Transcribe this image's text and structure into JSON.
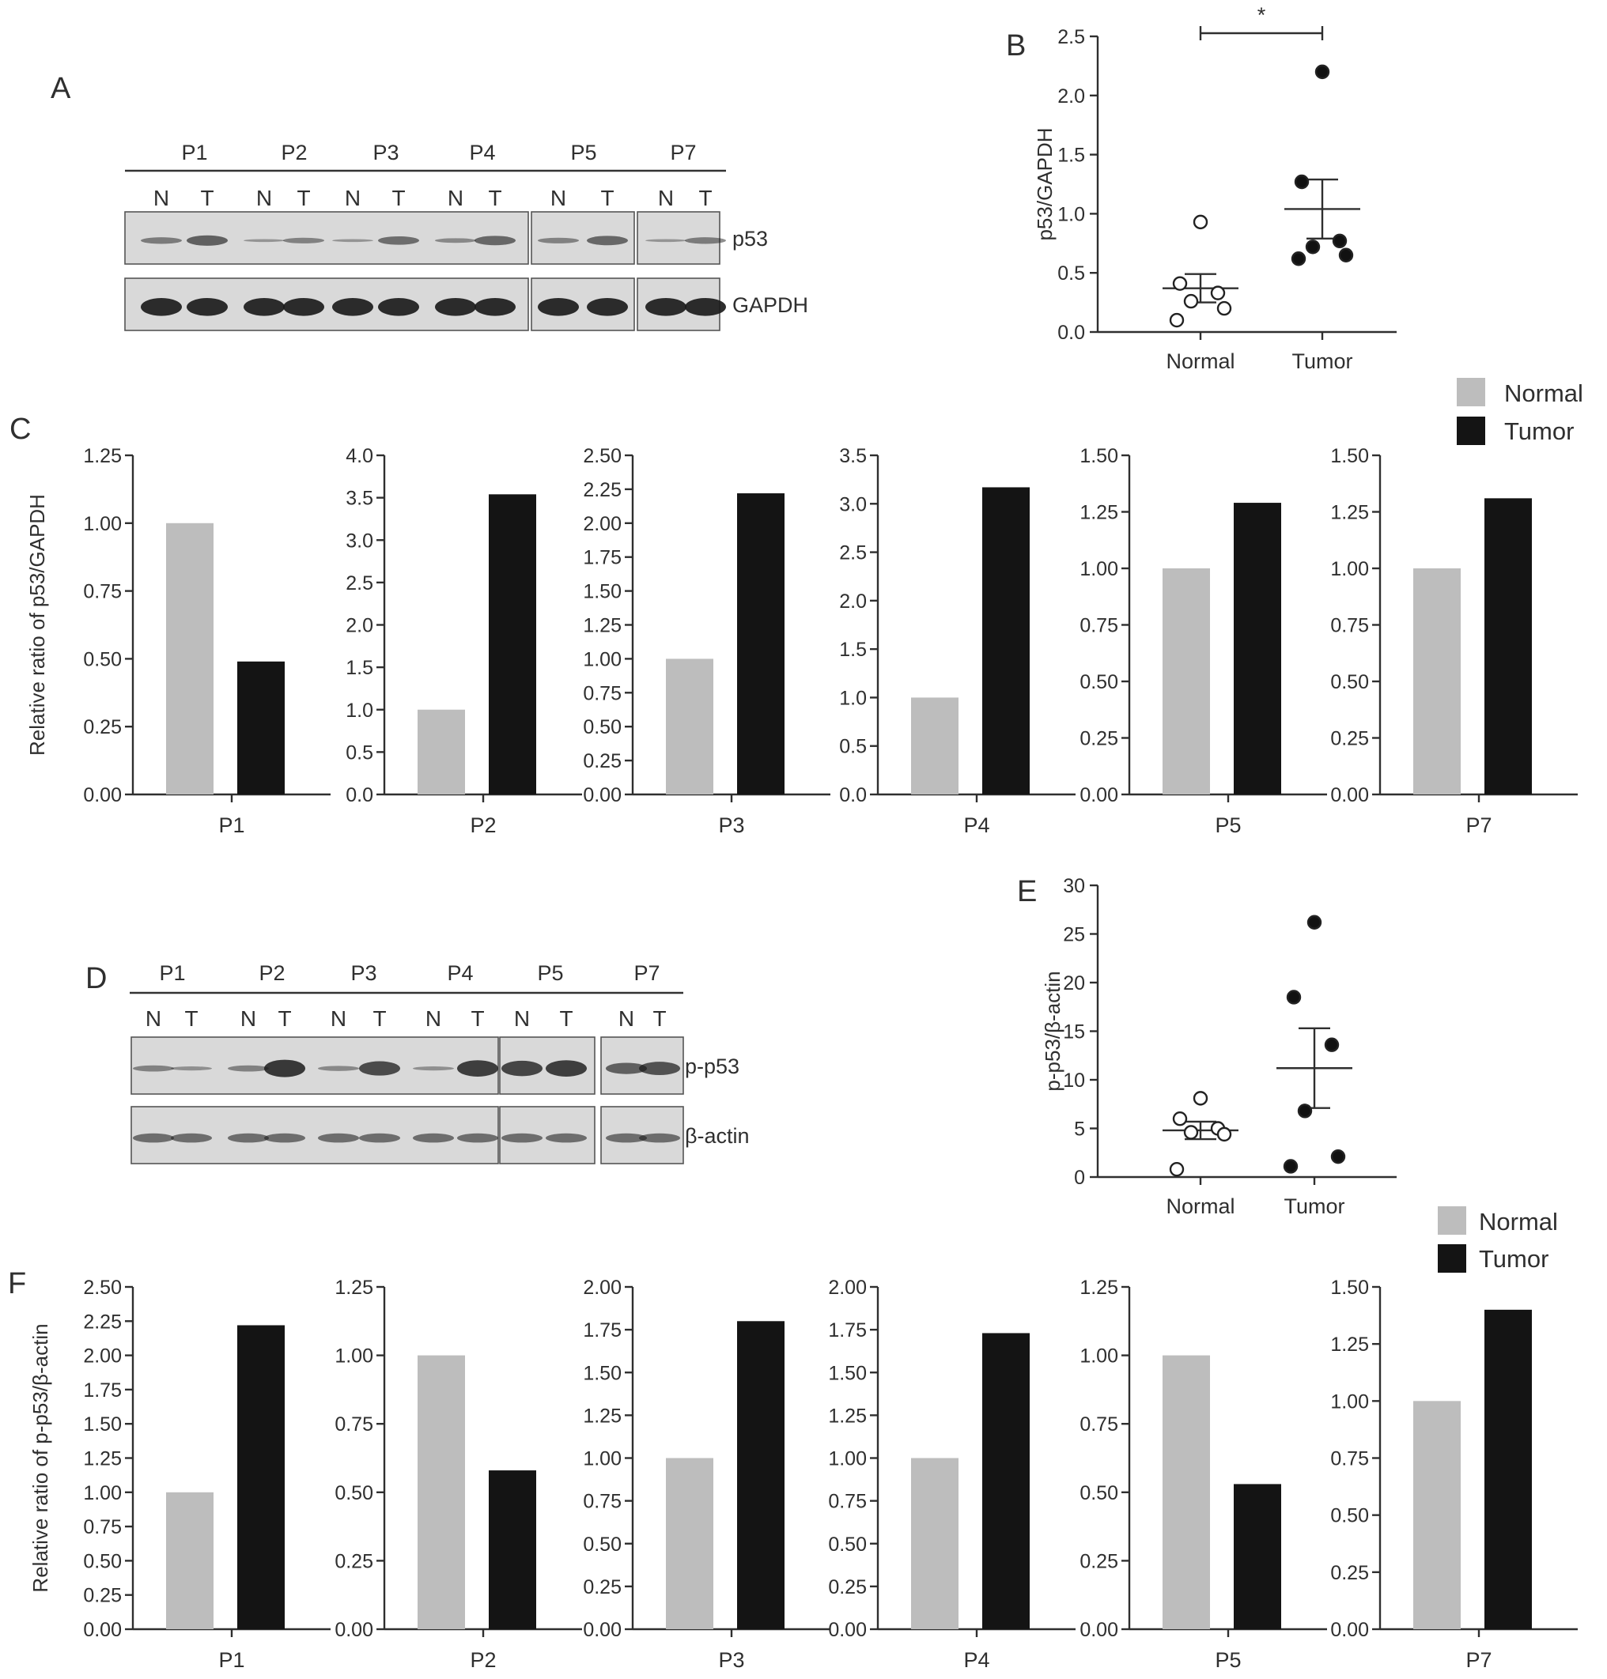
{
  "panels": {
    "A": "A",
    "B": "B",
    "C": "C",
    "D": "D",
    "E": "E",
    "F": "F"
  },
  "colors": {
    "normal": "#bdbdbd",
    "tumor": "#141414",
    "axis": "#2f2f2f",
    "blot_bg": "#d9d9d9",
    "band": "#1a1a1a"
  },
  "legend": {
    "normal": "Normal",
    "tumor": "Tumor"
  },
  "blots": {
    "A": {
      "groups": [
        "P1",
        "P2",
        "P3",
        "P4",
        "P5",
        "P7"
      ],
      "lanes": [
        "N",
        "T",
        "N",
        "T",
        "N",
        "T",
        "N",
        "T",
        "N",
        "T",
        "N",
        "T"
      ],
      "rows": [
        "p53",
        "GAPDH"
      ]
    },
    "D": {
      "groups": [
        "P1",
        "P2",
        "P3",
        "P4",
        "P5",
        "P7"
      ],
      "lanes": [
        "N",
        "T",
        "N",
        "T",
        "N",
        "T",
        "N",
        "T",
        "N",
        "T",
        "N",
        "T"
      ],
      "rows": [
        "p-p53",
        "β-actin"
      ]
    }
  },
  "chart_data": [
    {
      "id": "B",
      "type": "scatter",
      "ylabel": "p53/GAPDH",
      "categories": [
        "Normal",
        "Tumor"
      ],
      "ylim": [
        0,
        2.5
      ],
      "yticks": [
        "0.0",
        "0.5",
        "1.0",
        "1.5",
        "2.0",
        "2.5"
      ],
      "series": [
        {
          "name": "Normal",
          "points": [
            0.93,
            0.41,
            0.33,
            0.26,
            0.2,
            0.1
          ],
          "mean": 0.37,
          "sem_low": 0.25,
          "sem_high": 0.49
        },
        {
          "name": "Tumor",
          "points": [
            2.2,
            1.27,
            0.77,
            0.72,
            0.65,
            0.62
          ],
          "mean": 1.04,
          "sem_low": 0.79,
          "sem_high": 1.29
        }
      ],
      "significance": "*"
    },
    {
      "id": "E",
      "type": "scatter",
      "ylabel": "p-p53/β-actin",
      "categories": [
        "Normal",
        "Tumor"
      ],
      "ylim": [
        0,
        30
      ],
      "yticks": [
        "0",
        "5",
        "10",
        "15",
        "20",
        "25",
        "30"
      ],
      "series": [
        {
          "name": "Normal",
          "points": [
            8.1,
            6.0,
            5.0,
            4.6,
            4.4,
            0.8
          ],
          "mean": 4.8,
          "sem_low": 3.9,
          "sem_high": 5.7
        },
        {
          "name": "Tumor",
          "points": [
            26.2,
            18.5,
            13.6,
            6.8,
            2.1,
            1.1
          ],
          "mean": 11.2,
          "sem_low": 7.1,
          "sem_high": 15.3
        }
      ]
    },
    {
      "id": "C",
      "type": "bar",
      "ylabel": "Relative ratio of p53/GAPDH",
      "series_names": [
        "Normal",
        "Tumor"
      ],
      "subplots": [
        {
          "category": "P1",
          "ylim": [
            0,
            1.25
          ],
          "yticks": [
            "0.00",
            "0.25",
            "0.50",
            "0.75",
            "1.00",
            "1.25"
          ],
          "values": [
            1.0,
            0.49
          ]
        },
        {
          "category": "P2",
          "ylim": [
            0,
            4.0
          ],
          "yticks": [
            "0.0",
            "0.5",
            "1.0",
            "1.5",
            "2.0",
            "2.5",
            "3.0",
            "3.5",
            "4.0"
          ],
          "values": [
            1.0,
            3.54
          ]
        },
        {
          "category": "P3",
          "ylim": [
            0,
            2.5
          ],
          "yticks": [
            "0.00",
            "0.25",
            "0.50",
            "0.75",
            "1.00",
            "1.25",
            "1.50",
            "1.75",
            "2.00",
            "2.25",
            "2.50"
          ],
          "values": [
            1.0,
            2.22
          ]
        },
        {
          "category": "P4",
          "ylim": [
            0,
            3.5
          ],
          "yticks": [
            "0.0",
            "0.5",
            "1.0",
            "1.5",
            "2.0",
            "2.5",
            "3.0",
            "3.5"
          ],
          "values": [
            1.0,
            3.17
          ]
        },
        {
          "category": "P5",
          "ylim": [
            0,
            1.5
          ],
          "yticks": [
            "0.00",
            "0.25",
            "0.50",
            "0.75",
            "1.00",
            "1.25",
            "1.50"
          ],
          "values": [
            1.0,
            1.29
          ]
        },
        {
          "category": "P7",
          "ylim": [
            0,
            1.5
          ],
          "yticks": [
            "0.00",
            "0.25",
            "0.50",
            "0.75",
            "1.00",
            "1.25",
            "1.50"
          ],
          "values": [
            1.0,
            1.31
          ]
        }
      ]
    },
    {
      "id": "F",
      "type": "bar",
      "ylabel": "Relative ratio of p-p53/β-actin",
      "series_names": [
        "Normal",
        "Tumor"
      ],
      "subplots": [
        {
          "category": "P1",
          "ylim": [
            0,
            2.5
          ],
          "yticks": [
            "0.00",
            "0.25",
            "0.50",
            "0.75",
            "1.00",
            "1.25",
            "1.50",
            "1.75",
            "2.00",
            "2.25",
            "2.50"
          ],
          "values": [
            1.0,
            2.22
          ]
        },
        {
          "category": "P2",
          "ylim": [
            0,
            1.25
          ],
          "yticks": [
            "0.00",
            "0.25",
            "0.50",
            "0.75",
            "1.00",
            "1.25"
          ],
          "values": [
            1.0,
            0.58
          ]
        },
        {
          "category": "P3",
          "ylim": [
            0,
            2.0
          ],
          "yticks": [
            "0.00",
            "0.25",
            "0.50",
            "0.75",
            "1.00",
            "1.25",
            "1.50",
            "1.75",
            "2.00"
          ],
          "values": [
            1.0,
            1.8
          ]
        },
        {
          "category": "P4",
          "ylim": [
            0,
            2.0
          ],
          "yticks": [
            "0.00",
            "0.25",
            "0.50",
            "0.75",
            "1.00",
            "1.25",
            "1.50",
            "1.75",
            "2.00"
          ],
          "values": [
            1.0,
            1.73
          ]
        },
        {
          "category": "P5",
          "ylim": [
            0,
            1.25
          ],
          "yticks": [
            "0.00",
            "0.25",
            "0.50",
            "0.75",
            "1.00",
            "1.25"
          ],
          "values": [
            1.0,
            0.53
          ]
        },
        {
          "category": "P7",
          "ylim": [
            0,
            1.5
          ],
          "yticks": [
            "0.00",
            "0.25",
            "0.50",
            "0.75",
            "1.00",
            "1.25",
            "1.50"
          ],
          "values": [
            1.0,
            1.4
          ]
        }
      ]
    }
  ]
}
